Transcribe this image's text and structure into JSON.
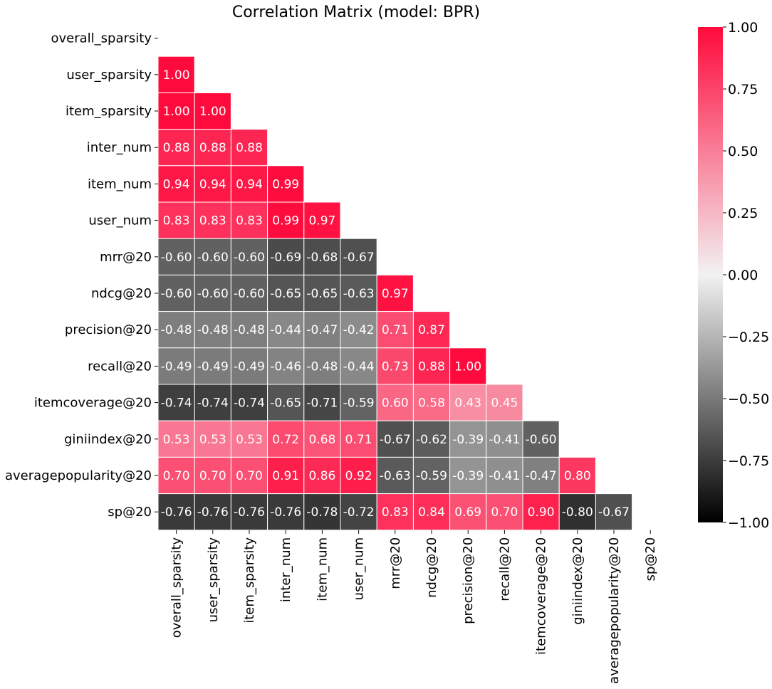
{
  "chart_data": {
    "type": "heatmap",
    "title": "Correlation Matrix (model: BPR)",
    "labels": [
      "overall_sparsity",
      "user_sparsity",
      "item_sparsity",
      "inter_num",
      "item_num",
      "user_num",
      "mrr@20",
      "ndcg@20",
      "precision@20",
      "recall@20",
      "itemcoverage@20",
      "giniindex@20",
      "averagepopularity@20",
      "sp@20"
    ],
    "matrix": [
      [],
      [
        1.0
      ],
      [
        1.0,
        1.0
      ],
      [
        0.88,
        0.88,
        0.88
      ],
      [
        0.94,
        0.94,
        0.94,
        0.99
      ],
      [
        0.83,
        0.83,
        0.83,
        0.99,
        0.97
      ],
      [
        -0.6,
        -0.6,
        -0.6,
        -0.69,
        -0.68,
        -0.67
      ],
      [
        -0.6,
        -0.6,
        -0.6,
        -0.65,
        -0.65,
        -0.63,
        0.97
      ],
      [
        -0.48,
        -0.48,
        -0.48,
        -0.44,
        -0.47,
        -0.42,
        0.71,
        0.87
      ],
      [
        -0.49,
        -0.49,
        -0.49,
        -0.46,
        -0.48,
        -0.44,
        0.73,
        0.88,
        1.0
      ],
      [
        -0.74,
        -0.74,
        -0.74,
        -0.65,
        -0.71,
        -0.59,
        0.6,
        0.58,
        0.43,
        0.45
      ],
      [
        0.53,
        0.53,
        0.53,
        0.72,
        0.68,
        0.71,
        -0.67,
        -0.62,
        -0.39,
        -0.41,
        -0.6
      ],
      [
        0.7,
        0.7,
        0.7,
        0.91,
        0.86,
        0.92,
        -0.63,
        -0.59,
        -0.39,
        -0.41,
        -0.47,
        0.8
      ],
      [
        -0.76,
        -0.76,
        -0.76,
        -0.76,
        -0.78,
        -0.72,
        0.83,
        0.84,
        0.69,
        0.7,
        0.9,
        -0.8,
        -0.67
      ]
    ],
    "mask": "upper triangle including diagonal",
    "value_format": "2 decimals",
    "colorbar": {
      "range": [
        -1.0,
        1.0
      ],
      "ticks": [
        "1.00",
        "0.75",
        "0.50",
        "0.25",
        "0.00",
        "-0.25",
        "-0.50",
        "-0.75",
        "-1.00"
      ],
      "colors": {
        "low": "#000000",
        "mid": "#f2f2f2",
        "high": "#ff0a3c"
      }
    }
  }
}
